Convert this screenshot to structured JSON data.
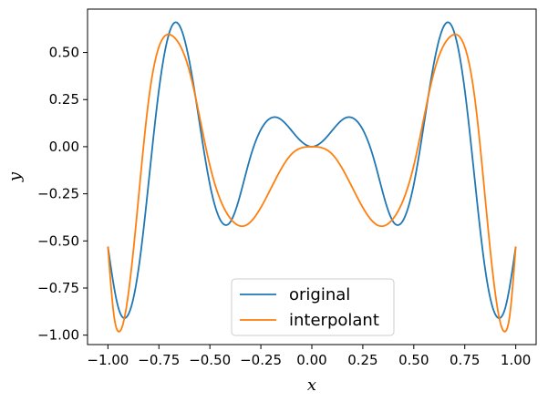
{
  "chart_data": {
    "type": "line",
    "title": "",
    "xlabel": "x",
    "ylabel": "y",
    "xlim": [
      -1.1,
      1.1
    ],
    "ylim": [
      -1.05,
      0.73
    ],
    "xticks": [
      -1.0,
      -0.75,
      -0.5,
      -0.25,
      0.0,
      0.25,
      0.5,
      0.75,
      1.0
    ],
    "xtick_labels": [
      "−1.00",
      "−0.75",
      "−0.50",
      "−0.25",
      "0.00",
      "0.25",
      "0.50",
      "0.75",
      "1.00"
    ],
    "yticks": [
      -1.0,
      -0.75,
      -0.5,
      -0.25,
      0.0,
      0.25,
      0.5
    ],
    "ytick_labels": [
      "−1.00",
      "−0.75",
      "−0.50",
      "−0.25",
      "0.00",
      "0.25",
      "0.50"
    ],
    "grid": false,
    "legend_position": "bottom-center",
    "series": [
      {
        "name": "original",
        "color": "#1f77b4",
        "x": [
          -1.0,
          -0.95,
          -0.92,
          -0.85,
          -0.75,
          -0.67,
          -0.6,
          -0.5,
          -0.4,
          -0.3,
          -0.17,
          -0.08,
          0.0,
          0.08,
          0.17,
          0.3,
          0.4,
          0.5,
          0.6,
          0.67,
          0.75,
          0.85,
          0.92,
          0.95,
          1.0
        ],
        "y": [
          -0.53,
          -0.85,
          -0.91,
          -0.65,
          0.3,
          0.66,
          0.45,
          -0.2,
          -0.4,
          -0.05,
          0.155,
          0.06,
          0.0,
          0.06,
          0.155,
          -0.05,
          -0.4,
          -0.2,
          0.45,
          0.66,
          0.3,
          -0.65,
          -0.91,
          -0.85,
          -0.53
        ]
      },
      {
        "name": "interpolant",
        "color": "#ff7f0e",
        "x": [
          -1.0,
          -0.97,
          -0.95,
          -0.88,
          -0.8,
          -0.68,
          -0.6,
          -0.5,
          -0.4,
          -0.33,
          -0.2,
          -0.1,
          0.0,
          0.1,
          0.2,
          0.33,
          0.4,
          0.5,
          0.6,
          0.68,
          0.8,
          0.88,
          0.95,
          0.97,
          1.0
        ],
        "y": [
          -0.53,
          -0.9,
          -0.98,
          -0.6,
          0.25,
          0.585,
          0.4,
          -0.1,
          -0.38,
          -0.42,
          -0.22,
          -0.04,
          0.0,
          -0.04,
          -0.22,
          -0.42,
          -0.38,
          -0.1,
          0.4,
          0.585,
          0.25,
          -0.6,
          -0.98,
          -0.9,
          -0.53
        ]
      }
    ]
  }
}
